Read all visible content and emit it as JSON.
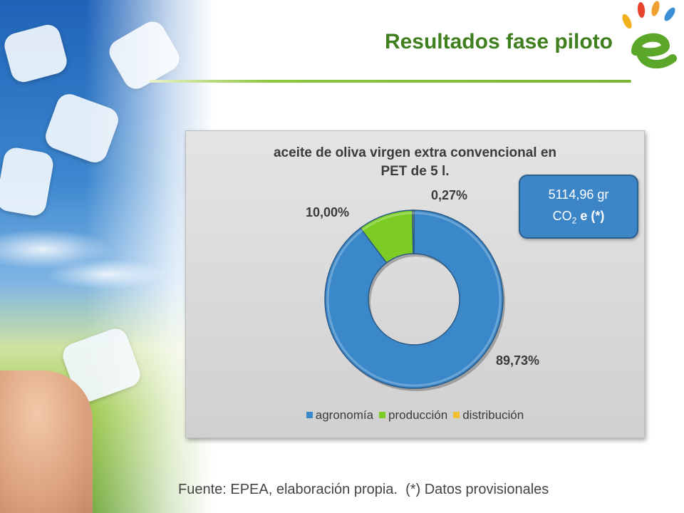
{
  "slide": {
    "title": "Resultados fase piloto",
    "footer": "Fuente: EPEA, elaboración propia.  (*) Datos provisionales"
  },
  "callout": {
    "line1": "5114,96 gr",
    "line2_prefix": "CO",
    "line2_sub": "2",
    "line2_suffix": " e (*)"
  },
  "chart_data": {
    "type": "pie",
    "variant": "donut",
    "title": "aceite de oliva virgen extra convencional en PET de 5 l.",
    "title_lines": [
      "aceite de oliva virgen extra convencional en",
      "PET de 5 l."
    ],
    "legend_position": "bottom",
    "slices": [
      {
        "name": "agronomía",
        "value": 89.73,
        "label": "89,73%",
        "color": "#3a87c9"
      },
      {
        "name": "producción",
        "value": 10.0,
        "label": "10,00%",
        "color": "#7ccc24"
      },
      {
        "name": "distribución",
        "value": 0.27,
        "label": "0,27%",
        "color": "#f0c030"
      }
    ]
  },
  "colors": {
    "title": "#3f7f1e",
    "accent_rule": "#8dc63f",
    "callout_bg": "#3c86c8"
  }
}
